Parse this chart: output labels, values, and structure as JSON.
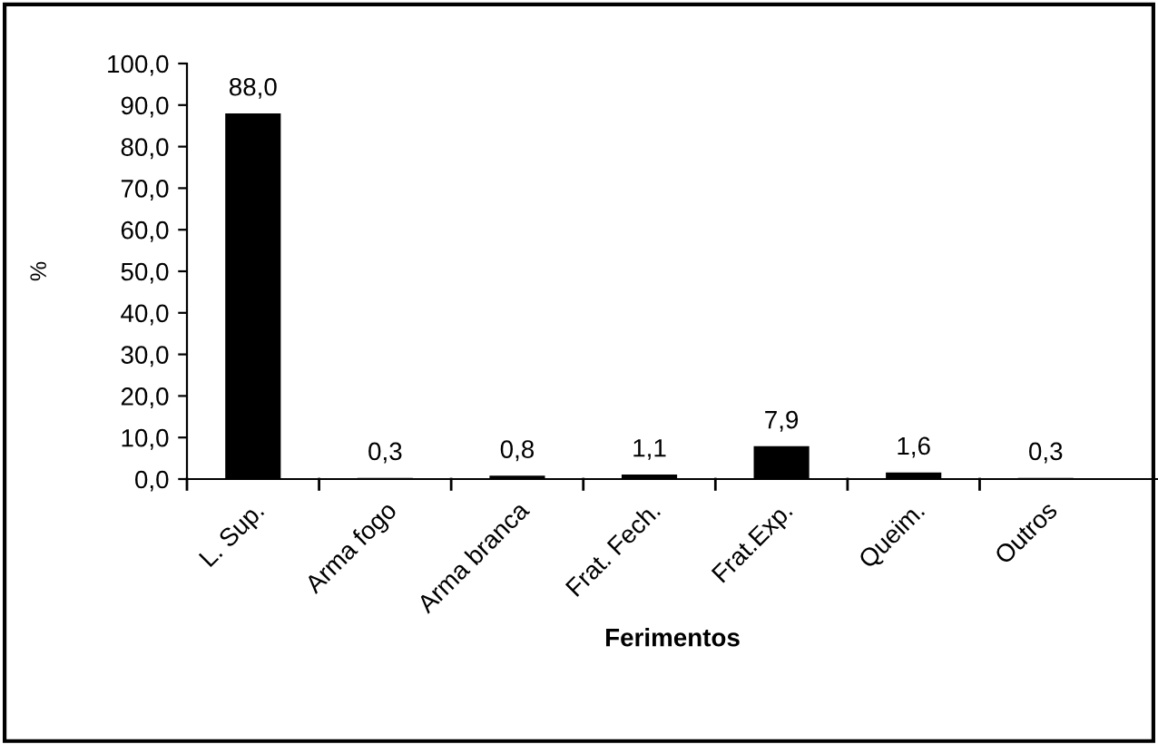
{
  "chart_data": {
    "type": "bar",
    "xlabel": "Ferimentos",
    "ylabel": "%",
    "categories": [
      "L. Sup.",
      "Arma fogo",
      "Arma branca",
      "Frat. Fech.",
      "Frat.Exp.",
      "Queim.",
      "Outros"
    ],
    "values": [
      88.0,
      0.3,
      0.8,
      1.1,
      7.9,
      1.6,
      0.3
    ],
    "value_labels": [
      "88,0",
      "0,3",
      "0,8",
      "1,1",
      "7,9",
      "1,6",
      "0,3"
    ],
    "color": "#000000",
    "ylim": [
      0,
      100
    ],
    "yticks": [
      {
        "value": 0,
        "label": "0,0"
      },
      {
        "value": 10,
        "label": "10,0"
      },
      {
        "value": 20,
        "label": "20,0"
      },
      {
        "value": 30,
        "label": "30,0"
      },
      {
        "value": 40,
        "label": "40,0"
      },
      {
        "value": 50,
        "label": "50,0"
      },
      {
        "value": 60,
        "label": "60,0"
      },
      {
        "value": 70,
        "label": "70,0"
      },
      {
        "value": 80,
        "label": "80,0"
      },
      {
        "value": 90,
        "label": "90,0"
      },
      {
        "value": 100,
        "label": "100,0"
      }
    ],
    "grid": false,
    "legend": false
  }
}
